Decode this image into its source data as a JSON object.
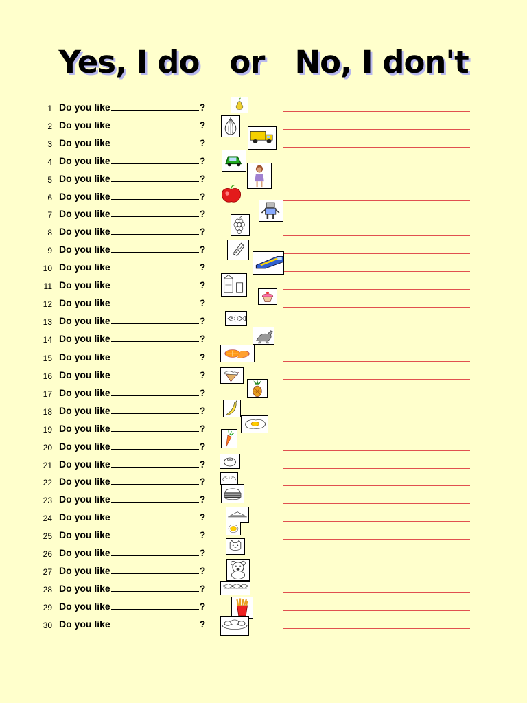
{
  "title": {
    "yes": "Yes, I do",
    "or": "or",
    "no": "No, I don't"
  },
  "question": {
    "prefix": "Do you like",
    "suffix": "?"
  },
  "rows": [
    {
      "n": "1"
    },
    {
      "n": "2"
    },
    {
      "n": "3"
    },
    {
      "n": "4"
    },
    {
      "n": "5"
    },
    {
      "n": "6"
    },
    {
      "n": "7"
    },
    {
      "n": "8"
    },
    {
      "n": "9"
    },
    {
      "n": "10"
    },
    {
      "n": "11"
    },
    {
      "n": "12"
    },
    {
      "n": "13"
    },
    {
      "n": "14"
    },
    {
      "n": "15"
    },
    {
      "n": "16"
    },
    {
      "n": "17"
    },
    {
      "n": "18"
    },
    {
      "n": "19"
    },
    {
      "n": "20"
    },
    {
      "n": "21"
    },
    {
      "n": "22"
    },
    {
      "n": "23"
    },
    {
      "n": "24"
    },
    {
      "n": "25"
    },
    {
      "n": "26"
    },
    {
      "n": "27"
    },
    {
      "n": "28"
    },
    {
      "n": "29"
    },
    {
      "n": "30"
    }
  ],
  "pictures": [
    "pear-icon",
    "onion-icon",
    "truck-icon",
    "car-icon",
    "girl-icon",
    "apple-icon",
    "robot-icon",
    "grapes-icon",
    "sushi-icon",
    "train-icon",
    "milk-icon",
    "cupcake-icon",
    "fish-icon",
    "dinosaur-icon",
    "orange-icon",
    "ice-cream-icon",
    "pineapple-icon",
    "banana-icon",
    "fried-egg-icon",
    "carrot-icon",
    "tomato-icon",
    "pie-icon",
    "hamburger-icon",
    "sandwich-icon",
    "egg-icon",
    "cat-icon",
    "bear-icon",
    "candy-icon",
    "fries-icon",
    "salad-icon"
  ],
  "colors": {
    "background": "#ffffcc",
    "answer_line": "#e05050",
    "title_shadow": "#b7b7ee"
  }
}
